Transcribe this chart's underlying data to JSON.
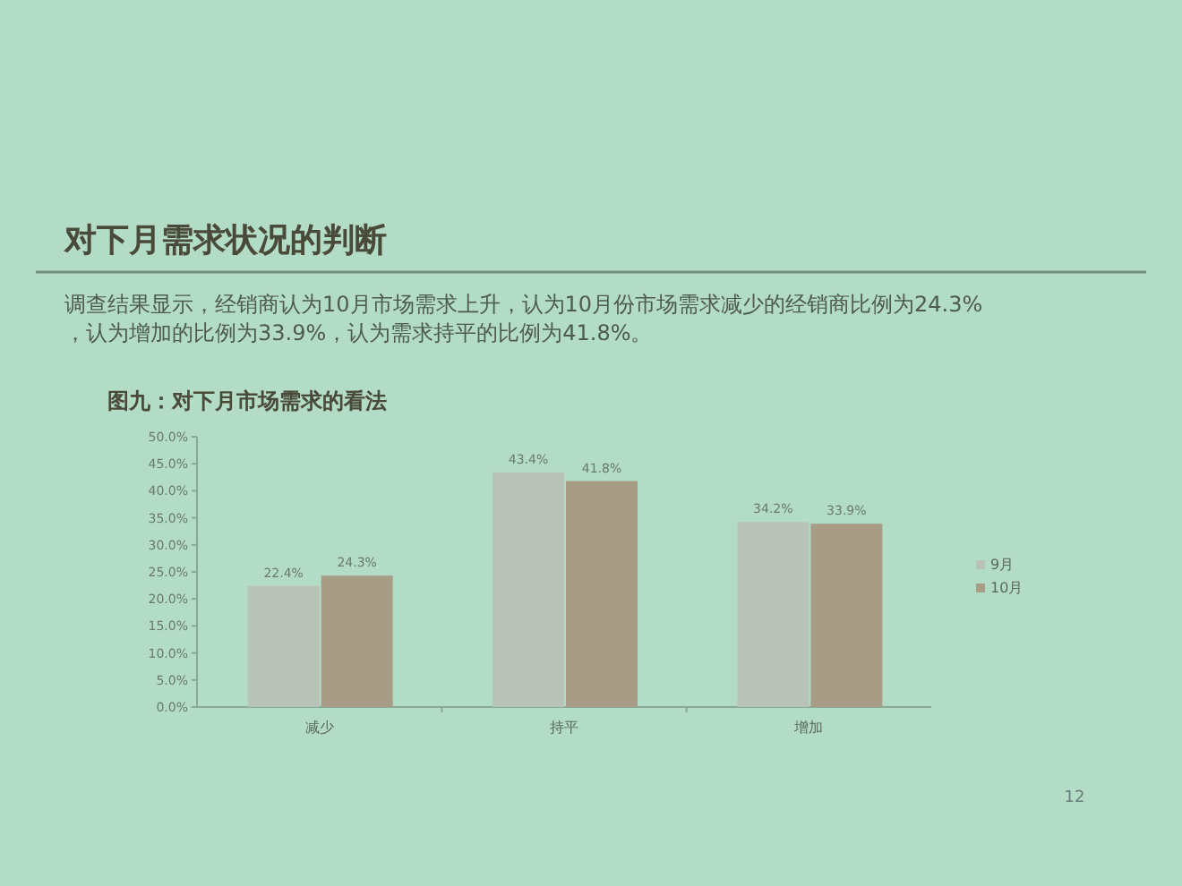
{
  "chart_data": {
    "type": "bar",
    "title": "对下月需求状况的判断",
    "subtitle": "调查结果显示，经销商认为10月市场需求上升，认为10月份市场需求减少的经销商比例为24.3%，认为增加的比例为33.9%，认为需求持平的比例为41.8%。",
    "annotations": [
      "图九：对下月市场需求的看法",
      "12"
    ],
    "categories": [
      "减少",
      "持平",
      "增加"
    ],
    "series": [
      {
        "name": "9月",
        "color": "#b9c2b9",
        "values": [
          22.4,
          43.4,
          34.2
        ],
        "value_labels": [
          "22.4%",
          "43.4%",
          "34.2%"
        ]
      },
      {
        "name": "10月",
        "color": "#a79d86",
        "values": [
          24.3,
          41.8,
          33.9
        ],
        "value_labels": [
          "24.3%",
          "41.8%",
          "33.9%"
        ]
      }
    ],
    "ylim": [
      0,
      50
    ],
    "yticks": [
      {
        "value": 0,
        "label": "0.0%"
      },
      {
        "value": 5,
        "label": "5.0%"
      },
      {
        "value": 10,
        "label": "10.0%"
      },
      {
        "value": 15,
        "label": "15.0%"
      },
      {
        "value": 20,
        "label": "20.0%"
      },
      {
        "value": 25,
        "label": "25.0%"
      },
      {
        "value": 30,
        "label": "30.0%"
      },
      {
        "value": 35,
        "label": "35.0%"
      },
      {
        "value": 40,
        "label": "40.0%"
      },
      {
        "value": 45,
        "label": "45.0%"
      },
      {
        "value": 50,
        "label": "50.0%"
      }
    ],
    "legend": "right"
  }
}
